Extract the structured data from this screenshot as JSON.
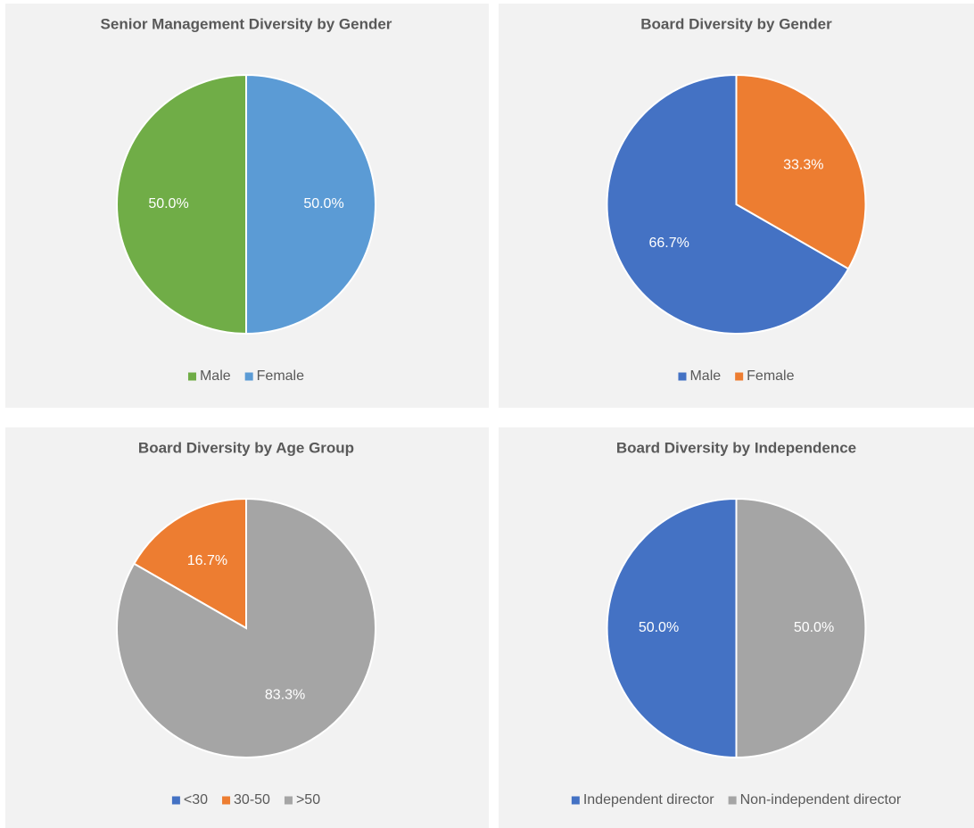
{
  "chart_data": [
    {
      "type": "pie",
      "title": "Senior Management Diversity by Gender",
      "categories": [
        "Male",
        "Female"
      ],
      "values": [
        50.0,
        50.0
      ],
      "value_labels": [
        "50.0%",
        "50.0%"
      ],
      "colors": [
        "#70ad47",
        "#5b9bd5"
      ],
      "legend": "bottom"
    },
    {
      "type": "pie",
      "title": "Board Diversity by Gender",
      "categories": [
        "Male",
        "Female"
      ],
      "values": [
        66.7,
        33.3
      ],
      "value_labels": [
        "66.7%",
        "33.3%"
      ],
      "colors": [
        "#4472c4",
        "#ed7d31"
      ],
      "legend": "bottom"
    },
    {
      "type": "pie",
      "title": "Board Diversity by Age Group",
      "categories": [
        "<30",
        "30-50",
        ">50"
      ],
      "values": [
        0,
        16.7,
        83.3
      ],
      "value_labels": [
        null,
        "16.7%",
        "83.3%"
      ],
      "colors": [
        "#4472c4",
        "#ed7d31",
        "#a5a5a5"
      ],
      "legend": "bottom"
    },
    {
      "type": "pie",
      "title": "Board Diversity by Independence",
      "categories": [
        "Independent director",
        "Non-independent director"
      ],
      "values": [
        50.0,
        50.0
      ],
      "value_labels": [
        "50.0%",
        "50.0%"
      ],
      "colors": [
        "#4472c4",
        "#a5a5a5"
      ],
      "legend": "bottom"
    }
  ]
}
